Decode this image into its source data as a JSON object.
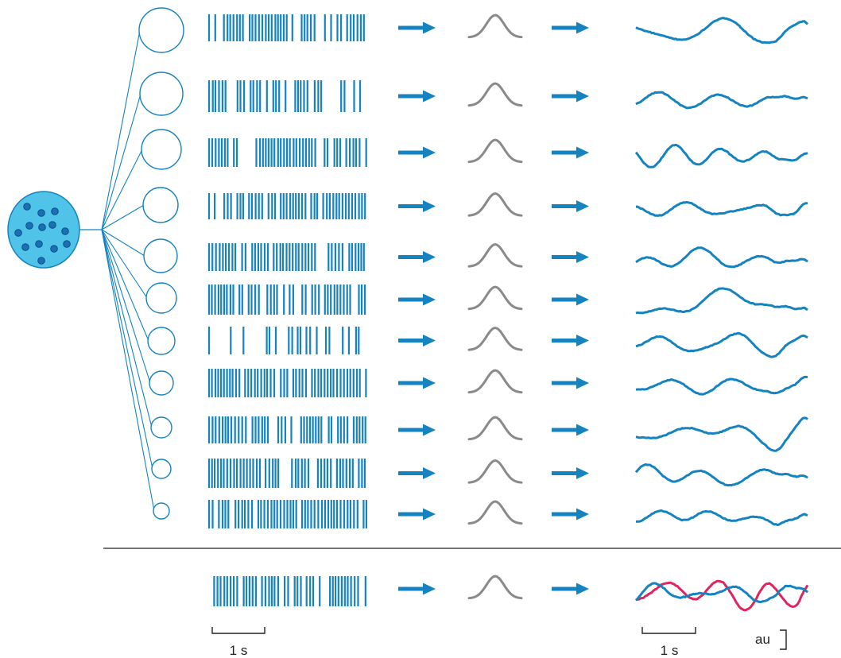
{
  "colors": {
    "accent": "#1583c0",
    "population_fill": "#4fc3e8",
    "population_stroke": "#1583c0",
    "dot_fill": "#1a6fb5",
    "kernel": "#8a8a8a",
    "compare_trace": "#e0245e",
    "divider": "#222222",
    "background": "#ffffff"
  },
  "neurons_count": 11,
  "icons": {
    "population": "neuron-population-icon",
    "neuron": "neuron-circle-icon",
    "arrow": "right-arrow-icon",
    "kernel": "gaussian-kernel-icon"
  },
  "scale_bars": {
    "spike_time_label": "1 s",
    "trace_time_label": "1 s",
    "amplitude_label": "au"
  }
}
